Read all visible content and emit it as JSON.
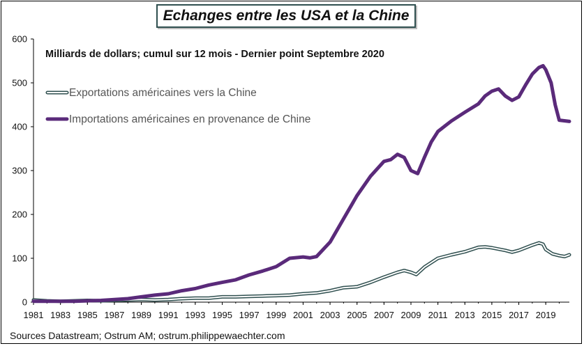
{
  "header": {
    "title": "Echanges entre les USA et la Chine"
  },
  "footer": {
    "source": "Sources Datastream; Ostrum AM; ostrum.philippewaechter.com"
  },
  "chart_data": {
    "type": "line",
    "subtitle": "Milliards de dollars; cumul sur 12 mois - Dernier point Septembre 2020",
    "ylim": [
      0,
      600
    ],
    "xlim": [
      1981,
      2020.75
    ],
    "yticks": [
      "0",
      "100",
      "200",
      "300",
      "400",
      "500",
      "600"
    ],
    "xticks": [
      "1981",
      "1983",
      "1985",
      "1987",
      "1989",
      "1991",
      "1993",
      "1995",
      "1997",
      "1999",
      "2001",
      "2003",
      "2005",
      "2007",
      "2009",
      "2011",
      "2013",
      "2015",
      "2017",
      "2019"
    ],
    "grid": false,
    "legend_position": "top-left",
    "series": [
      {
        "name": "Exportations américaines vers la Chine",
        "color": "#ffffff",
        "outline_color": "#2f4f4f",
        "x": [
          1981,
          1982,
          1983,
          1984,
          1985,
          1986,
          1987,
          1988,
          1989,
          1990,
          1991,
          1992,
          1993,
          1994,
          1995,
          1996,
          1997,
          1998,
          1999,
          2000,
          2001,
          2002,
          2003,
          2004,
          2005,
          2006,
          2007,
          2008,
          2008.5,
          2009,
          2009.4,
          2010,
          2011,
          2012,
          2013,
          2014,
          2014.5,
          2015,
          2016,
          2016.5,
          2017,
          2018,
          2018.5,
          2018.8,
          2019,
          2019.5,
          2020,
          2020.4,
          2020.75
        ],
        "y": [
          5,
          3,
          2,
          3,
          4,
          3,
          4,
          5,
          6,
          5,
          6,
          8,
          9,
          9,
          12,
          12,
          13,
          14,
          15,
          16,
          19,
          21,
          26,
          33,
          35,
          45,
          57,
          68,
          72,
          68,
          63,
          80,
          100,
          108,
          115,
          125,
          126,
          124,
          118,
          114,
          118,
          130,
          135,
          132,
          120,
          110,
          106,
          104,
          108
        ]
      },
      {
        "name": "Importations américaines en provenance de Chine",
        "color": "#5a2a7a",
        "x": [
          1981,
          1982,
          1983,
          1984,
          1985,
          1986,
          1987,
          1988,
          1989,
          1990,
          1991,
          1992,
          1993,
          1994,
          1995,
          1996,
          1997,
          1998,
          1999,
          2000,
          2001,
          2001.5,
          2002,
          2003,
          2004,
          2005,
          2006,
          2007,
          2007.5,
          2008,
          2008.5,
          2009,
          2009.5,
          2010,
          2010.5,
          2011,
          2012,
          2013,
          2014,
          2014.5,
          2015,
          2015.5,
          2016,
          2016.5,
          2017,
          2017.5,
          2018,
          2018.5,
          2018.8,
          2019,
          2019.4,
          2019.7,
          2020,
          2020.75
        ],
        "y": [
          2,
          2,
          2,
          2,
          3,
          4,
          6,
          8,
          12,
          16,
          19,
          26,
          31,
          39,
          45,
          51,
          62,
          71,
          81,
          100,
          103,
          101,
          104,
          137,
          190,
          243,
          287,
          321,
          325,
          337,
          330,
          300,
          293,
          330,
          365,
          389,
          413,
          433,
          452,
          470,
          481,
          486,
          470,
          460,
          468,
          495,
          520,
          535,
          539,
          530,
          500,
          450,
          415,
          412
        ]
      }
    ]
  }
}
